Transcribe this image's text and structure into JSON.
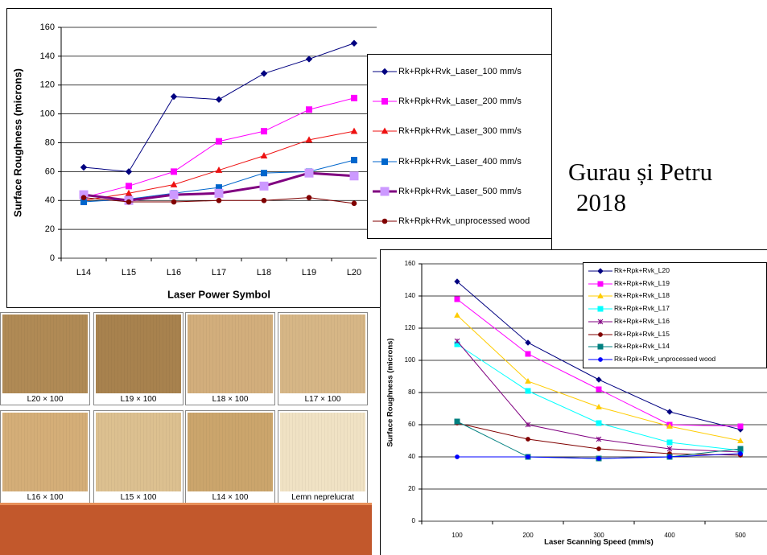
{
  "chart_data": [
    {
      "type": "line",
      "y_label": "Surface Roughness (microns)",
      "x_label": "Laser Power Symbol",
      "categories": [
        "L14",
        "L15",
        "L16",
        "L17",
        "L18",
        "L19",
        "L20"
      ],
      "ylim": [
        0,
        160
      ],
      "yticks": [
        0,
        20,
        40,
        60,
        80,
        100,
        120,
        140,
        160
      ],
      "grid": true,
      "series": [
        {
          "name": "Rk+Rpk+Rvk_Laser_100 mm/s",
          "color": "#000080",
          "marker": "diamond",
          "values": [
            63,
            60,
            112,
            110,
            128,
            138,
            149
          ]
        },
        {
          "name": "Rk+Rpk+Rvk_Laser_200 mm/s",
          "color": "#ff00ff",
          "marker": "square",
          "values": [
            42,
            50,
            60,
            81,
            88,
            103,
            111
          ]
        },
        {
          "name": "Rk+Rpk+Rvk_Laser_300 mm/s",
          "color": "#ee1111",
          "marker": "triangle",
          "values": [
            40,
            45,
            51,
            61,
            71,
            82,
            88
          ]
        },
        {
          "name": "Rk+Rpk+Rvk_Laser_400 mm/s",
          "color": "#0066cc",
          "marker": "square",
          "values": [
            39,
            41,
            45,
            49,
            59,
            60,
            68
          ]
        },
        {
          "name": "Rk+Rpk+Rvk_Laser_500 mm/s",
          "color": "#800080",
          "marker_color": "#cc99ff",
          "marker": "square",
          "line_width": 3,
          "values": [
            44,
            40,
            44,
            45,
            50,
            59,
            57
          ]
        },
        {
          "name": "Rk+Rpk+Rvk_unprocessed wood",
          "color": "#800000",
          "marker": "circle",
          "values": [
            42,
            39,
            39,
            40,
            40,
            42,
            38
          ]
        }
      ]
    },
    {
      "type": "line",
      "y_label": "Surface Roughness (microns)",
      "x_label": "Laser Scanning Speed (mm/s)",
      "categories": [
        "100",
        "200",
        "300",
        "400",
        "500"
      ],
      "ylim": [
        0,
        160
      ],
      "yticks": [
        0,
        20,
        40,
        60,
        80,
        100,
        120,
        140,
        160
      ],
      "grid": true,
      "series": [
        {
          "name": "Rk+Rpk+Rvk_L20",
          "color": "#000080",
          "marker": "diamond",
          "values": [
            149,
            111,
            88,
            68,
            57
          ]
        },
        {
          "name": "Rk+Rpk+Rvk_L19",
          "color": "#ff00ff",
          "marker": "square",
          "values": [
            138,
            104,
            82,
            60,
            59
          ]
        },
        {
          "name": "Rk+Rpk+Rvk_L18",
          "color": "#ffcc00",
          "marker": "triangle",
          "values": [
            128,
            87,
            71,
            59,
            50
          ]
        },
        {
          "name": "Rk+Rpk+Rvk_L17",
          "color": "#00ffff",
          "marker": "square",
          "values": [
            110,
            81,
            61,
            49,
            44
          ]
        },
        {
          "name": "Rk+Rpk+Rvk_L16",
          "color": "#800080",
          "marker": "asterisk",
          "values": [
            112,
            60,
            51,
            45,
            43
          ]
        },
        {
          "name": "Rk+Rpk+Rvk_L15",
          "color": "#800000",
          "marker": "circle",
          "values": [
            61,
            51,
            45,
            42,
            41
          ]
        },
        {
          "name": "Rk+Rpk+Rvk_L14",
          "color": "#008080",
          "marker": "square",
          "values": [
            62,
            40,
            39,
            40,
            45
          ]
        },
        {
          "name": "Rk+Rpk+Rvk_unprocessed wood",
          "color": "#0000ff",
          "marker": "circle",
          "values": [
            40,
            40,
            39,
            40,
            42
          ]
        }
      ]
    }
  ],
  "caption": {
    "lines": [
      "Gurau și Petru",
      "2018"
    ]
  },
  "samples": [
    {
      "label": "L20 × 100",
      "color": "#b08a55"
    },
    {
      "label": "L19 × 100",
      "color": "#a8824e"
    },
    {
      "label": "L18 × 100",
      "color": "#d2ae7c"
    },
    {
      "label": "L17 × 100",
      "color": "#d6b686"
    },
    {
      "label": "L16 × 100",
      "color": "#d4ae78"
    },
    {
      "label": "L15 × 100",
      "color": "#dcc090"
    },
    {
      "label": "L14 × 100",
      "color": "#cba56c"
    },
    {
      "label": "Lemn neprelucrat",
      "color": "#f0e2c4"
    }
  ]
}
